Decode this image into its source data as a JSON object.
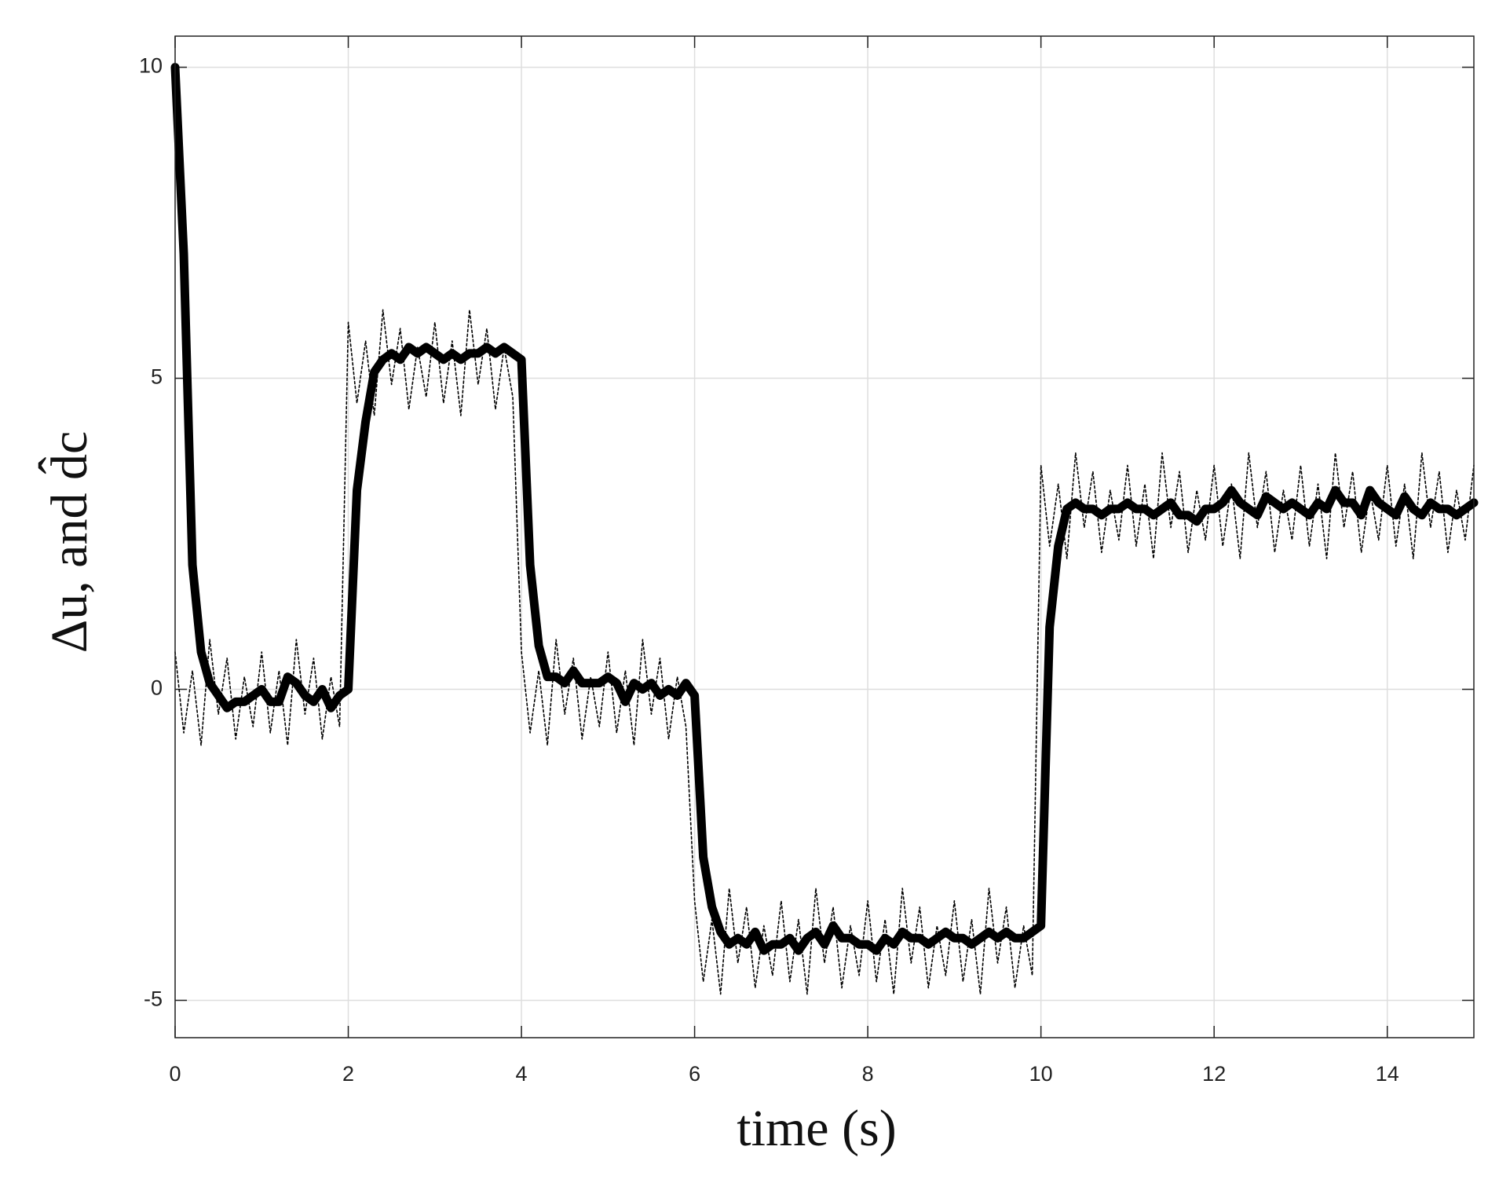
{
  "chart_data": {
    "type": "line",
    "xlabel": "time (s)",
    "ylabel": "Δu, and d̂c",
    "x": [
      0,
      0.1,
      0.2,
      0.3,
      0.4,
      0.5,
      0.6,
      0.7,
      0.8,
      0.9,
      1.0,
      1.1,
      1.2,
      1.3,
      1.4,
      1.5,
      1.6,
      1.7,
      1.8,
      1.9,
      2.0,
      2.1,
      2.2,
      2.3,
      2.4,
      2.5,
      2.6,
      2.7,
      2.8,
      2.9,
      3.0,
      3.1,
      3.2,
      3.3,
      3.4,
      3.5,
      3.6,
      3.7,
      3.8,
      3.9,
      4.0,
      4.1,
      4.2,
      4.3,
      4.4,
      4.5,
      4.6,
      4.7,
      4.8,
      4.9,
      5.0,
      5.1,
      5.2,
      5.3,
      5.4,
      5.5,
      5.6,
      5.7,
      5.8,
      5.9,
      6.0,
      6.1,
      6.2,
      6.3,
      6.4,
      6.5,
      6.6,
      6.7,
      6.8,
      6.9,
      7.0,
      7.1,
      7.2,
      7.3,
      7.4,
      7.5,
      7.6,
      7.7,
      7.8,
      7.9,
      8.0,
      8.1,
      8.2,
      8.3,
      8.4,
      8.5,
      8.6,
      8.7,
      8.8,
      8.9,
      9.0,
      9.1,
      9.2,
      9.3,
      9.4,
      9.5,
      9.6,
      9.7,
      9.8,
      9.9,
      10.0,
      10.1,
      10.2,
      10.3,
      10.4,
      10.5,
      10.6,
      10.7,
      10.8,
      10.9,
      11.0,
      11.1,
      11.2,
      11.3,
      11.4,
      11.5,
      11.6,
      11.7,
      11.8,
      11.9,
      12.0,
      12.1,
      12.2,
      12.3,
      12.4,
      12.5,
      12.6,
      12.7,
      12.8,
      12.9,
      13.0,
      13.1,
      13.2,
      13.3,
      13.4,
      13.5,
      13.6,
      13.7,
      13.8,
      13.9,
      14.0,
      14.1,
      14.2,
      14.3,
      14.4,
      14.5,
      14.6,
      14.7,
      14.8,
      14.9,
      15.0
    ],
    "series": [
      {
        "color": "#000000",
        "style": "dotted",
        "values": [
          0.6,
          -0.7,
          0.3,
          -0.9,
          0.8,
          -0.4,
          0.5,
          -0.8,
          0.2,
          -0.6,
          0.6,
          -0.7,
          0.3,
          -0.9,
          0.8,
          -0.4,
          0.5,
          -0.8,
          0.2,
          -0.6,
          5.9,
          4.6,
          5.6,
          4.4,
          6.1,
          4.9,
          5.8,
          4.5,
          5.5,
          4.7,
          5.9,
          4.6,
          5.6,
          4.4,
          6.1,
          4.9,
          5.8,
          4.5,
          5.5,
          4.7,
          0.6,
          -0.7,
          0.3,
          -0.9,
          0.8,
          -0.4,
          0.5,
          -0.8,
          0.2,
          -0.6,
          0.6,
          -0.7,
          0.3,
          -0.9,
          0.8,
          -0.4,
          0.5,
          -0.8,
          0.2,
          -0.6,
          -3.4,
          -4.7,
          -3.7,
          -4.9,
          -3.2,
          -4.4,
          -3.5,
          -4.8,
          -3.8,
          -4.6,
          -3.4,
          -4.7,
          -3.7,
          -4.9,
          -3.2,
          -4.4,
          -3.5,
          -4.8,
          -3.8,
          -4.6,
          -3.4,
          -4.7,
          -3.7,
          -4.9,
          -3.2,
          -4.4,
          -3.5,
          -4.8,
          -3.8,
          -4.6,
          -3.4,
          -4.7,
          -3.7,
          -4.9,
          -3.2,
          -4.4,
          -3.5,
          -4.8,
          -3.8,
          -4.6,
          3.6,
          2.3,
          3.3,
          2.1,
          3.8,
          2.6,
          3.5,
          2.2,
          3.2,
          2.4,
          3.6,
          2.3,
          3.3,
          2.1,
          3.8,
          2.6,
          3.5,
          2.2,
          3.2,
          2.4,
          3.6,
          2.3,
          3.3,
          2.1,
          3.8,
          2.6,
          3.5,
          2.2,
          3.2,
          2.4,
          3.6,
          2.3,
          3.3,
          2.1,
          3.8,
          2.6,
          3.5,
          2.2,
          3.2,
          2.4,
          3.6,
          2.3,
          3.3,
          2.1,
          3.8,
          2.6,
          3.5,
          2.2,
          3.2,
          2.4,
          3.6
        ]
      },
      {
        "color": "#000000",
        "style": "solid",
        "values": [
          10,
          7,
          2,
          0.6,
          0.1,
          -0.1,
          -0.3,
          -0.2,
          -0.2,
          -0.1,
          0.0,
          -0.2,
          -0.2,
          0.2,
          0.1,
          -0.1,
          -0.2,
          0.0,
          -0.3,
          -0.1,
          0.0,
          3.2,
          4.3,
          5.1,
          5.3,
          5.4,
          5.3,
          5.5,
          5.4,
          5.5,
          5.4,
          5.3,
          5.4,
          5.3,
          5.4,
          5.4,
          5.5,
          5.4,
          5.5,
          5.4,
          5.3,
          2.0,
          0.7,
          0.2,
          0.2,
          0.1,
          0.3,
          0.1,
          0.1,
          0.1,
          0.2,
          0.1,
          -0.2,
          0.1,
          0.0,
          0.1,
          -0.1,
          0.0,
          -0.1,
          0.1,
          -0.1,
          -2.7,
          -3.5,
          -3.9,
          -4.1,
          -4.0,
          -4.1,
          -3.9,
          -4.2,
          -4.1,
          -4.1,
          -4.0,
          -4.2,
          -4.0,
          -3.9,
          -4.1,
          -3.8,
          -4.0,
          -4.0,
          -4.1,
          -4.1,
          -4.2,
          -4.0,
          -4.1,
          -3.9,
          -4.0,
          -4.0,
          -4.1,
          -4.0,
          -3.9,
          -4.0,
          -4.0,
          -4.1,
          -4.0,
          -3.9,
          -4.0,
          -3.9,
          -4.0,
          -4.0,
          -3.9,
          -3.8,
          1.0,
          2.3,
          2.9,
          3.0,
          2.9,
          2.9,
          2.8,
          2.9,
          2.9,
          3.0,
          2.9,
          2.9,
          2.8,
          2.9,
          3.0,
          2.8,
          2.8,
          2.7,
          2.9,
          2.9,
          3.0,
          3.2,
          3.0,
          2.9,
          2.8,
          3.1,
          3.0,
          2.9,
          3.0,
          2.9,
          2.8,
          3.0,
          2.9,
          3.2,
          3.0,
          3.0,
          2.8,
          3.2,
          3.0,
          2.9,
          2.8,
          3.1,
          2.9,
          2.8,
          3.0,
          2.9,
          2.9,
          2.8,
          2.9,
          3.0
        ]
      }
    ],
    "xlim": [
      0,
      15
    ],
    "xticks": [
      0,
      2,
      4,
      6,
      8,
      10,
      12,
      14
    ],
    "ylim": [
      -5.6,
      10.5
    ],
    "yticks": [
      -5,
      0,
      5,
      10
    ],
    "grid": true
  }
}
